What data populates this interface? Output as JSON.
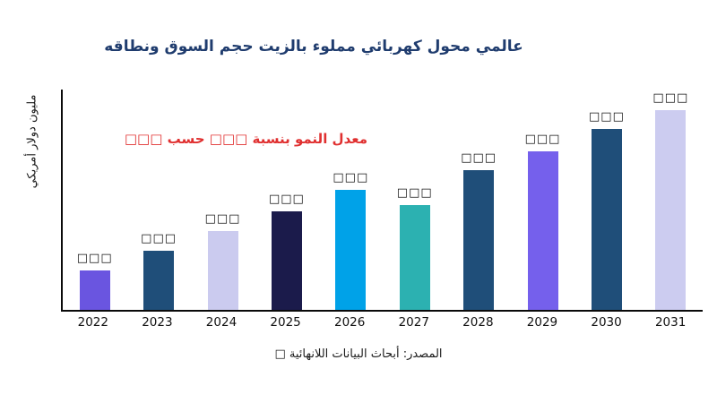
{
  "title": "عالمي محول كهربائي مملوء بالزيت حجم السوق ونطاقه",
  "ylabel": "مليون دولار أمريكي",
  "annotation": "معدل النمو بنسبة □□□ حسب □□□",
  "source": "المصدر: أبحاث البيانات اللانهائية □",
  "colors": {
    "title": "#1F3C6E",
    "annotation": "#E03030",
    "axis": "#0a0a0a"
  },
  "chart_data": {
    "type": "bar",
    "title": "عالمي محول كهربائي مملوء بالزيت حجم السوق ونطاقه",
    "ylabel": "مليون دولار أمريكي",
    "categories": [
      "2022",
      "2023",
      "2024",
      "2025",
      "2026",
      "2027",
      "2028",
      "2029",
      "2030",
      "2031"
    ],
    "values": [
      45,
      67,
      89,
      112,
      136,
      119,
      159,
      180,
      205,
      227
    ],
    "value_labels": [
      "□□□",
      "□□□",
      "□□□",
      "□□□",
      "□□□",
      "□□□",
      "□□□",
      "□□□",
      "□□□",
      "□□□"
    ],
    "bar_colors": [
      "#6A55E0",
      "#1F4E79",
      "#CBCBEF",
      "#1B1B4B",
      "#00A2E8",
      "#2CB1B1",
      "#1F4E79",
      "#7560EC",
      "#1F4E79",
      "#CCCCF0"
    ],
    "ylim": [
      0,
      250
    ],
    "grid": false,
    "legend": "none",
    "annotation": "معدل النمو بنسبة □□□ حسب □□□"
  }
}
